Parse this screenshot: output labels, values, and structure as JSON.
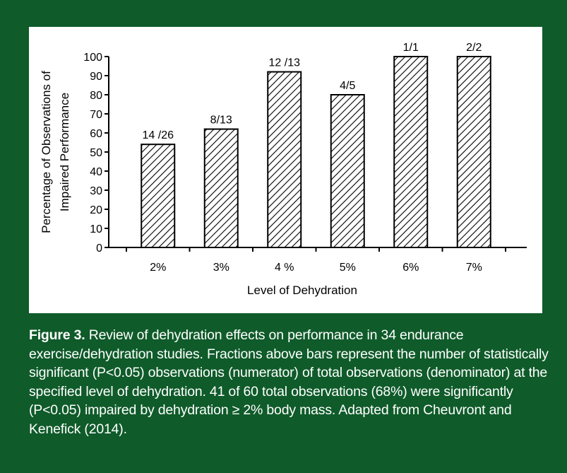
{
  "chart_data": {
    "type": "bar",
    "categories": [
      "2%",
      "3%",
      "4 %",
      "5%",
      "6%",
      "7%"
    ],
    "values": [
      54,
      62,
      92,
      80,
      100,
      100
    ],
    "bar_labels": [
      "14 /26",
      "8/13",
      "12 /13",
      "4/5",
      "1/1",
      "2/2"
    ],
    "title": "",
    "xlabel": "Level of Dehydration",
    "ylabel_lines": [
      "Percentage  of  Observations  of",
      "Impaired  Performance"
    ],
    "ylim": [
      0,
      100
    ],
    "yticks": [
      0,
      10,
      20,
      30,
      40,
      50,
      60,
      70,
      80,
      90,
      100
    ],
    "fill": "diagonal-hatch",
    "grid": false,
    "legend": "none"
  },
  "caption": {
    "label": "Figure 3.",
    "text": "Review of dehydration effects on performance in 34 endurance exercise/dehydration studies. Fractions above bars represent the number of statistically significant (P<0.05) observations (numerator) of total observations (denominator) at the specified level of dehydration. 41 of 60 total observations (68%) were significantly (P<0.05) impaired by dehydration ≥ 2% body mass. Adapted from Cheuvront and Kenefick (2014)."
  },
  "colors": {
    "background": "#0f5b2a",
    "panel": "#ffffff",
    "ink": "#000000",
    "caption_text": "#ffffff"
  }
}
